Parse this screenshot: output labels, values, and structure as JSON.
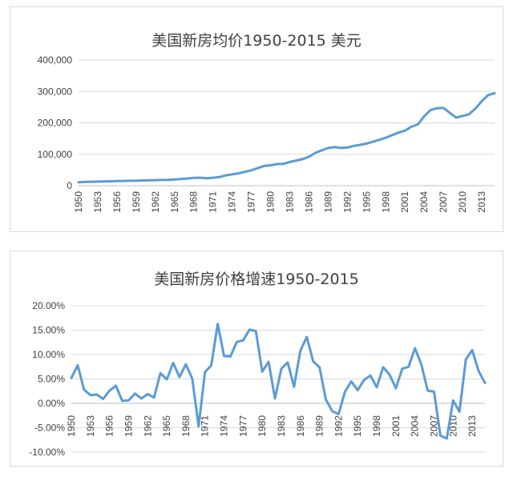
{
  "chart_data": [
    {
      "type": "line",
      "title": "美国新房均价1950-2015 美元",
      "x": [
        1950,
        1951,
        1952,
        1953,
        1954,
        1955,
        1956,
        1957,
        1958,
        1959,
        1960,
        1961,
        1962,
        1963,
        1964,
        1965,
        1966,
        1967,
        1968,
        1969,
        1970,
        1971,
        1972,
        1973,
        1974,
        1975,
        1976,
        1977,
        1978,
        1979,
        1980,
        1981,
        1982,
        1983,
        1984,
        1985,
        1986,
        1987,
        1988,
        1989,
        1990,
        1991,
        1992,
        1993,
        1994,
        1995,
        1996,
        1997,
        1998,
        1999,
        2000,
        2001,
        2002,
        2003,
        2004,
        2005,
        2006,
        2007,
        2008,
        2009,
        2010,
        2011,
        2012,
        2013,
        2014,
        2015
      ],
      "x_ticks": [
        "1950",
        "1953",
        "1956",
        "1959",
        "1962",
        "1965",
        "1968",
        "1971",
        "1974",
        "1977",
        "1980",
        "1983",
        "1986",
        "1989",
        "1992",
        "1995",
        "1998",
        "2001",
        "2004",
        "2007",
        "2010",
        "2013"
      ],
      "y_ticks": [
        "0",
        "100,000",
        "200,000",
        "300,000",
        "400,000"
      ],
      "ylim": [
        0,
        400000
      ],
      "series": [
        {
          "color": "#5b9bd5",
          "values": [
            11000,
            12000,
            12500,
            13000,
            13500,
            14000,
            14500,
            15000,
            15500,
            15800,
            16500,
            17000,
            17500,
            18000,
            18500,
            20000,
            21500,
            22700,
            24700,
            25600,
            23400,
            25200,
            27600,
            32500,
            35900,
            39300,
            44200,
            48800,
            55700,
            62900,
            64600,
            68900,
            69300,
            75300,
            79900,
            84300,
            92000,
            104500,
            112500,
            120000,
            122900,
            120000,
            121500,
            126500,
            130000,
            133900,
            140000,
            146000,
            152500,
            161000,
            169000,
            175200,
            187600,
            195000,
            221000,
            240900,
            246500,
            247900,
            232100,
            216700,
            221800,
            227200,
            245200,
            268900,
            288500,
            294300
          ]
        }
      ],
      "grid": true,
      "legend": "none"
    },
    {
      "type": "line",
      "title": "美国新房价格增速1950-2015",
      "x": [
        1950,
        1951,
        1952,
        1953,
        1954,
        1955,
        1956,
        1957,
        1958,
        1959,
        1960,
        1961,
        1962,
        1963,
        1964,
        1965,
        1966,
        1967,
        1968,
        1969,
        1970,
        1971,
        1972,
        1973,
        1974,
        1975,
        1976,
        1977,
        1978,
        1979,
        1980,
        1981,
        1982,
        1983,
        1984,
        1985,
        1986,
        1987,
        1988,
        1989,
        1990,
        1991,
        1992,
        1993,
        1994,
        1995,
        1996,
        1997,
        1998,
        1999,
        2000,
        2001,
        2002,
        2003,
        2004,
        2005,
        2006,
        2007,
        2008,
        2009,
        2010,
        2011,
        2012,
        2013,
        2014,
        2015
      ],
      "x_ticks": [
        "1950",
        "1953",
        "1956",
        "1959",
        "1962",
        "1965",
        "1968",
        "1971",
        "1974",
        "1977",
        "1980",
        "1983",
        "1986",
        "1989",
        "1992",
        "1995",
        "1998",
        "2001",
        "2004",
        "2007",
        "2010",
        "2013"
      ],
      "y_ticks": [
        "-10.00%",
        "-5.00%",
        "0.00%",
        "5.00%",
        "10.00%",
        "15.00%",
        "20.00%"
      ],
      "ylim": [
        -10,
        20
      ],
      "series": [
        {
          "color": "#5b9bd5",
          "values": [
            5.2,
            7.8,
            2.8,
            1.7,
            1.8,
            0.9,
            2.6,
            3.6,
            0.5,
            0.6,
            2.0,
            1.0,
            1.9,
            1.2,
            6.2,
            4.9,
            8.3,
            5.4,
            8.0,
            5.1,
            -4.7,
            6.4,
            7.8,
            16.3,
            9.7,
            9.6,
            12.6,
            12.9,
            15.1,
            14.8,
            6.5,
            8.5,
            1.0,
            7.1,
            8.4,
            3.4,
            10.8,
            13.6,
            8.6,
            7.4,
            0.8,
            -1.6,
            -2.2,
            2.4,
            4.5,
            2.7,
            4.8,
            5.7,
            3.3,
            7.4,
            5.9,
            3.1,
            7.1,
            7.5,
            11.3,
            8.0,
            2.6,
            2.4,
            -6.6,
            -7.2,
            0.6,
            -1.7,
            9.0,
            10.9,
            6.6,
            4.2
          ]
        }
      ],
      "grid": true,
      "legend": "none"
    }
  ]
}
